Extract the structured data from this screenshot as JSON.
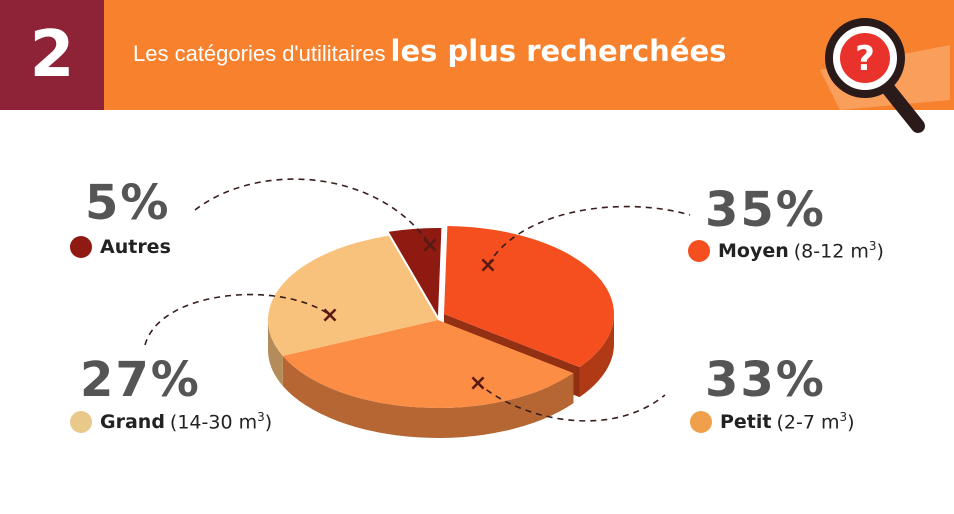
{
  "header": {
    "number": "2",
    "title_regular": "Les catégories d'utilitaires",
    "title_bold": "les plus recherchées"
  },
  "colors": {
    "header_bg": "#f8812d",
    "number_bg": "#8e2236",
    "autres": "#8e1a12",
    "moyen": "#f54f1f",
    "petit": "#fb8d45",
    "grand": "#f8c27c"
  },
  "chart_data": {
    "type": "pie",
    "slices": [
      {
        "key": "moyen",
        "label": "Moyen",
        "detail": "(8-12 m",
        "detail_sup": "3",
        "detail_end": ")",
        "percent": "35%",
        "value": 35
      },
      {
        "key": "petit",
        "label": "Petit",
        "detail": "(2-7 m",
        "detail_sup": "3",
        "detail_end": ")",
        "percent": "33%",
        "value": 33
      },
      {
        "key": "grand",
        "label": "Grand",
        "detail": "(14-30 m",
        "detail_sup": "3",
        "detail_end": ")",
        "percent": "27%",
        "value": 27
      },
      {
        "key": "autres",
        "label": "Autres",
        "detail": "",
        "detail_sup": "",
        "detail_end": "",
        "percent": "5%",
        "value": 5
      }
    ]
  }
}
